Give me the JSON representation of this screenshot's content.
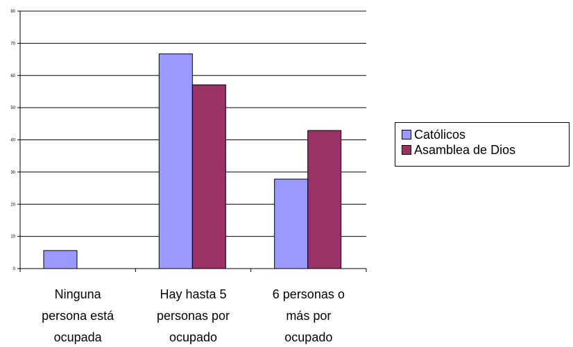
{
  "chart_data": {
    "type": "bar",
    "categories": [
      [
        "Ninguna",
        "persona está",
        "ocupada"
      ],
      [
        "Hay hasta 5",
        "personas por",
        "ocupado"
      ],
      [
        "6 personas o",
        "más por",
        "ocupado"
      ]
    ],
    "series": [
      {
        "name": "Católicos",
        "color": "#9999ff",
        "values": [
          5.6,
          66.7,
          27.8
        ]
      },
      {
        "name": "Asamblea de Dios",
        "color": "#993366",
        "values": [
          0,
          57.1,
          42.9
        ]
      }
    ],
    "yticks": [
      "0",
      "10",
      "20",
      "30",
      "40",
      "50",
      "60",
      "70",
      "80"
    ],
    "ylim": [
      0,
      80
    ],
    "grid": true,
    "legend_position": "right",
    "title": "",
    "xlabel": "",
    "ylabel": ""
  }
}
